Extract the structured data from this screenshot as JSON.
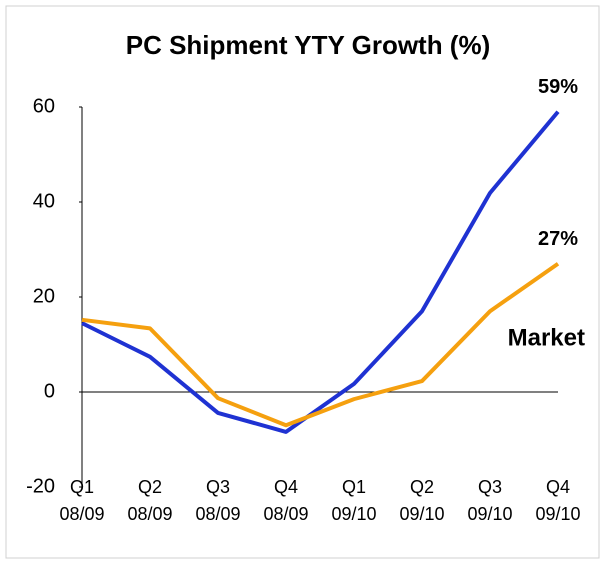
{
  "chart_data": {
    "type": "line",
    "title": "PC Shipment YTY Growth (%)",
    "categories": [
      "Q1 08/09",
      "Q2 08/09",
      "Q3 08/09",
      "Q4 08/09",
      "Q1 09/10",
      "Q2 09/10",
      "Q3 09/10",
      "Q4 09/10"
    ],
    "series": [
      {
        "color": "#1f32d2",
        "values": [
          14.5,
          7.4,
          -4.4,
          -8.4,
          1.7,
          17,
          41.9,
          59
        ],
        "value_labels": [
          null,
          null,
          null,
          null,
          null,
          null,
          null,
          "59%"
        ]
      },
      {
        "name": "Market",
        "color": "#f5a00f",
        "values": [
          15.2,
          13.4,
          -1.3,
          -7,
          -1.5,
          2.3,
          17,
          27
        ],
        "value_labels": [
          null,
          null,
          null,
          null,
          null,
          null,
          null,
          "27%"
        ]
      }
    ],
    "ylim": [
      -20,
      60
    ],
    "yticks": [
      -20,
      0,
      20,
      40,
      60
    ]
  }
}
